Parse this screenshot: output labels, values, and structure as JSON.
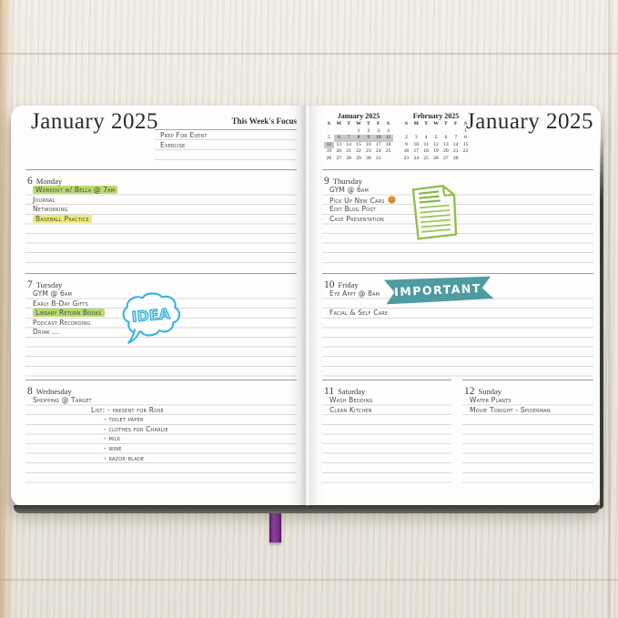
{
  "colors": {
    "highlight_green": "#b9d96d",
    "highlight_yellow": "#edea7d",
    "banner_teal": "#4e9ba1",
    "doodle_blue": "#2fb3dd",
    "doodle_green": "#8fbf4d",
    "smiley_orange": "#f2a43f",
    "bookmark_purple": "#7c2e8e",
    "ink": "#4a4a48"
  },
  "book": {
    "left_page": {
      "title": "January 2025",
      "focus": {
        "label": "This Week's Focus",
        "entries": [
          "Prep For Event",
          "Exercise"
        ]
      },
      "days": [
        {
          "num": "6",
          "name": "Monday",
          "entries": [
            {
              "text": "Workout w/ Bella @ 7am",
              "highlight": "green"
            },
            {
              "text": "Journal"
            },
            {
              "text": "Networking"
            },
            {
              "text": "Baseball Practice",
              "highlight": "yellow"
            }
          ]
        },
        {
          "num": "7",
          "name": "Tuesday",
          "doodle": "idea-cloud",
          "doodle_text": "IDEA",
          "entries": [
            {
              "text": "GYM @ 6am"
            },
            {
              "text": "Early B-Day Gifts"
            },
            {
              "text": "Library Return Books",
              "highlight": "green"
            },
            {
              "text": "Podcast Recording"
            },
            {
              "text": "Drink ..."
            }
          ]
        },
        {
          "num": "8",
          "name": "Wednesday",
          "entries": [
            {
              "text": "Shopping @ Target"
            },
            {
              "text": "List: - present for Rose",
              "indent": 1
            },
            {
              "text": "- toilet paper",
              "indent": 2
            },
            {
              "text": "- clothes for Charlie",
              "indent": 2
            },
            {
              "text": "- milk",
              "indent": 2
            },
            {
              "text": "- wine",
              "indent": 2
            },
            {
              "text": "- razor blade",
              "indent": 2
            }
          ]
        }
      ]
    },
    "right_page": {
      "title": "January 2025",
      "mini_calendars": [
        {
          "title": "January 2025",
          "day_headers": [
            "S",
            "M",
            "T",
            "W",
            "T",
            "F",
            "S"
          ],
          "weeks": [
            [
              "",
              "",
              "",
              "1",
              "2",
              "3",
              "4"
            ],
            [
              "5",
              "6",
              "7",
              "8",
              "9",
              "10",
              "11"
            ],
            [
              "12",
              "13",
              "14",
              "15",
              "16",
              "17",
              "18"
            ],
            [
              "19",
              "20",
              "21",
              "22",
              "23",
              "24",
              "25"
            ],
            [
              "26",
              "27",
              "28",
              "29",
              "30",
              "31",
              ""
            ]
          ],
          "highlight": [
            "6",
            "7",
            "8",
            "9",
            "10",
            "11",
            "12"
          ]
        },
        {
          "title": "February 2025",
          "day_headers": [
            "S",
            "M",
            "T",
            "W",
            "T",
            "F",
            "S"
          ],
          "weeks": [
            [
              "",
              "",
              "",
              "",
              "",
              "",
              "1"
            ],
            [
              "2",
              "3",
              "4",
              "5",
              "6",
              "7",
              "8"
            ],
            [
              "9",
              "10",
              "11",
              "12",
              "13",
              "14",
              "15"
            ],
            [
              "16",
              "17",
              "18",
              "19",
              "20",
              "21",
              "22"
            ],
            [
              "23",
              "24",
              "25",
              "26",
              "27",
              "28",
              ""
            ]
          ],
          "highlight": []
        }
      ],
      "days": [
        {
          "num": "9",
          "name": "Thursday",
          "doodle": "lined-note",
          "entries": [
            {
              "text": "GYM @ 6am"
            },
            {
              "text": "Pick Up New Cars",
              "icon": "smiley"
            },
            {
              "text": "Edit Blog Post"
            },
            {
              "text": "Case Presentation"
            }
          ]
        },
        {
          "num": "10",
          "name": "Friday",
          "banner": "IMPORTANT",
          "entries": [
            {
              "text": "Eye Appt @ 8am"
            },
            {
              "text": "Facial & Self Care"
            }
          ]
        },
        {
          "num": "11",
          "name": "Saturday",
          "entries": [
            {
              "text": "Wash Bedding"
            },
            {
              "text": "Clean Kitchen"
            }
          ]
        },
        {
          "num": "12",
          "name": "Sunday",
          "entries": [
            {
              "text": "Water Plants"
            },
            {
              "text": "Movie Tonight - Spiderman"
            }
          ]
        }
      ]
    }
  }
}
